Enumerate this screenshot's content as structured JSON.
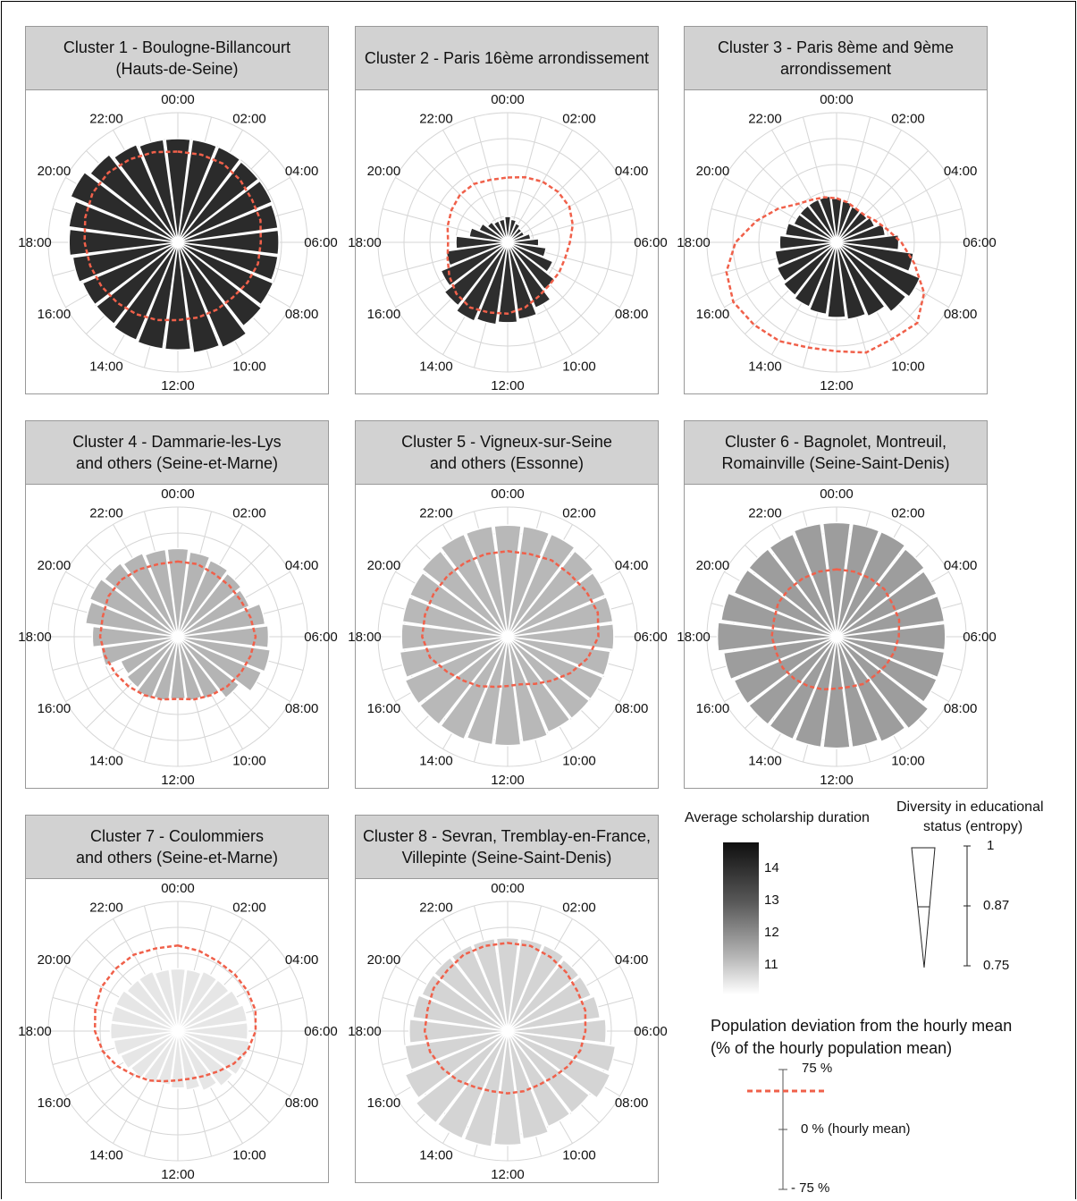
{
  "chart_data": [
    {
      "type": "polar-bar",
      "title_line1": "Cluster 1 - Boulogne-Billancourt",
      "title_line2": "(Hauts-de-Seine)",
      "hour_labels": [
        "00:00",
        "02:00",
        "04:00",
        "06:00",
        "08:00",
        "10:00",
        "12:00",
        "14:00",
        "16:00",
        "18:00",
        "20:00",
        "22:00"
      ],
      "bar_radius": [
        0.8,
        0.8,
        0.8,
        0.79,
        0.79,
        0.78,
        0.78,
        0.78,
        0.8,
        0.82,
        0.88,
        0.86,
        0.83,
        0.83,
        0.82,
        0.8,
        0.8,
        0.82,
        0.84,
        0.85,
        0.9,
        0.86,
        0.82,
        0.8
      ],
      "bar_color": "#2b2b2b",
      "deviation_line": [
        0.7,
        0.7,
        0.7,
        0.68,
        0.66,
        0.66,
        0.64,
        0.64,
        0.62,
        0.6,
        0.6,
        0.6,
        0.6,
        0.62,
        0.64,
        0.66,
        0.68,
        0.7,
        0.72,
        0.74,
        0.76,
        0.76,
        0.74,
        0.72
      ]
    },
    {
      "type": "polar-bar",
      "title_line1": "Cluster 2 - Paris 16ème arrondissement",
      "title_line2": "",
      "hour_labels": [
        "00:00",
        "02:00",
        "04:00",
        "06:00",
        "08:00",
        "10:00",
        "12:00",
        "14:00",
        "16:00",
        "18:00",
        "20:00",
        "22:00"
      ],
      "bar_radius": [
        0.2,
        0.18,
        0.16,
        0.14,
        0.14,
        0.18,
        0.24,
        0.3,
        0.38,
        0.46,
        0.55,
        0.6,
        0.62,
        0.64,
        0.66,
        0.62,
        0.56,
        0.48,
        0.4,
        0.3,
        0.24,
        0.2,
        0.18,
        0.18
      ],
      "bar_color": "#2e2e2e",
      "deviation_line": [
        0.5,
        0.52,
        0.54,
        0.55,
        0.55,
        0.52,
        0.48,
        0.46,
        0.46,
        0.46,
        0.48,
        0.52,
        0.55,
        0.56,
        0.58,
        0.56,
        0.52,
        0.48,
        0.46,
        0.48,
        0.5,
        0.52,
        0.52,
        0.5
      ]
    },
    {
      "type": "polar-bar",
      "title_line1": "Cluster 3 - Paris 8ème and 9ème",
      "title_line2": "arrondissement",
      "hour_labels": [
        "00:00",
        "02:00",
        "04:00",
        "06:00",
        "08:00",
        "10:00",
        "12:00",
        "14:00",
        "16:00",
        "18:00",
        "20:00",
        "22:00"
      ],
      "bar_radius": [
        0.34,
        0.32,
        0.3,
        0.3,
        0.32,
        0.38,
        0.48,
        0.6,
        0.7,
        0.68,
        0.62,
        0.6,
        0.58,
        0.56,
        0.54,
        0.52,
        0.5,
        0.48,
        0.44,
        0.4,
        0.36,
        0.36,
        0.36,
        0.36
      ],
      "bar_color": "#2b2b2b",
      "deviation_line": [
        0.34,
        0.32,
        0.3,
        0.3,
        0.34,
        0.4,
        0.5,
        0.62,
        0.78,
        0.88,
        0.86,
        0.88,
        0.84,
        0.84,
        0.88,
        0.9,
        0.92,
        0.88,
        0.78,
        0.64,
        0.52,
        0.42,
        0.38,
        0.36
      ]
    },
    {
      "type": "polar-bar",
      "title_line1": "Cluster 4 - Dammarie-les-Lys",
      "title_line2": "and others (Seine-et-Marne)",
      "hour_labels": [
        "00:00",
        "02:00",
        "04:00",
        "06:00",
        "08:00",
        "10:00",
        "12:00",
        "14:00",
        "16:00",
        "18:00",
        "20:00",
        "22:00"
      ],
      "bar_radius": [
        0.68,
        0.66,
        0.64,
        0.62,
        0.6,
        0.68,
        0.7,
        0.72,
        0.7,
        0.6,
        0.52,
        0.5,
        0.48,
        0.5,
        0.52,
        0.5,
        0.48,
        0.6,
        0.66,
        0.72,
        0.74,
        0.72,
        0.7,
        0.68
      ],
      "bar_color": "#b4b4b4",
      "deviation_line": [
        0.58,
        0.58,
        0.56,
        0.56,
        0.56,
        0.58,
        0.6,
        0.58,
        0.56,
        0.54,
        0.52,
        0.5,
        0.48,
        0.5,
        0.52,
        0.54,
        0.56,
        0.58,
        0.6,
        0.6,
        0.62,
        0.62,
        0.6,
        0.58
      ]
    },
    {
      "type": "polar-bar",
      "title_line1": "Cluster 5 - Vigneux-sur-Seine",
      "title_line2": "and others (Essonne)",
      "hour_labels": [
        "00:00",
        "02:00",
        "04:00",
        "06:00",
        "08:00",
        "10:00",
        "12:00",
        "14:00",
        "16:00",
        "18:00",
        "20:00",
        "22:00"
      ],
      "bar_radius": [
        0.86,
        0.86,
        0.86,
        0.84,
        0.82,
        0.82,
        0.82,
        0.8,
        0.8,
        0.8,
        0.8,
        0.82,
        0.84,
        0.84,
        0.86,
        0.86,
        0.86,
        0.84,
        0.82,
        0.82,
        0.82,
        0.84,
        0.86,
        0.86
      ],
      "bar_color": "#b8b8b8",
      "deviation_line": [
        0.66,
        0.66,
        0.68,
        0.68,
        0.7,
        0.72,
        0.7,
        0.64,
        0.56,
        0.48,
        0.42,
        0.38,
        0.38,
        0.4,
        0.44,
        0.48,
        0.54,
        0.62,
        0.66,
        0.66,
        0.66,
        0.66,
        0.66,
        0.66
      ]
    },
    {
      "type": "polar-bar",
      "title_line1": "Cluster 6 - Bagnolet, Montreuil,",
      "title_line2": "Romainville (Seine-Saint-Denis)",
      "hour_labels": [
        "00:00",
        "02:00",
        "04:00",
        "06:00",
        "08:00",
        "10:00",
        "12:00",
        "14:00",
        "16:00",
        "18:00",
        "20:00",
        "22:00"
      ],
      "bar_radius": [
        0.88,
        0.88,
        0.88,
        0.86,
        0.84,
        0.84,
        0.84,
        0.84,
        0.84,
        0.9,
        0.88,
        0.86,
        0.86,
        0.86,
        0.86,
        0.86,
        0.86,
        0.88,
        0.92,
        0.9,
        0.86,
        0.86,
        0.86,
        0.88
      ],
      "bar_color": "#9d9d9d",
      "deviation_line": [
        0.52,
        0.52,
        0.52,
        0.52,
        0.5,
        0.5,
        0.48,
        0.46,
        0.44,
        0.42,
        0.42,
        0.4,
        0.4,
        0.42,
        0.44,
        0.46,
        0.48,
        0.48,
        0.5,
        0.5,
        0.52,
        0.52,
        0.52,
        0.52
      ]
    },
    {
      "type": "polar-bar",
      "title_line1": "Cluster 7 - Coulommiers",
      "title_line2": "and others (Seine-et-Marne)",
      "hour_labels": [
        "00:00",
        "02:00",
        "04:00",
        "06:00",
        "08:00",
        "10:00",
        "12:00",
        "14:00",
        "16:00",
        "18:00",
        "20:00",
        "22:00"
      ],
      "bar_radius": [
        0.48,
        0.48,
        0.5,
        0.5,
        0.52,
        0.54,
        0.54,
        0.56,
        0.56,
        0.54,
        0.5,
        0.46,
        0.44,
        0.42,
        0.44,
        0.46,
        0.48,
        0.5,
        0.52,
        0.52,
        0.52,
        0.5,
        0.5,
        0.48
      ],
      "bar_color": "#e6e6e6",
      "deviation_line": [
        0.66,
        0.64,
        0.62,
        0.62,
        0.62,
        0.62,
        0.6,
        0.56,
        0.5,
        0.44,
        0.4,
        0.38,
        0.38,
        0.4,
        0.44,
        0.48,
        0.54,
        0.6,
        0.64,
        0.66,
        0.68,
        0.68,
        0.68,
        0.66
      ]
    },
    {
      "type": "polar-bar",
      "title_line1": "Cluster 8 - Sevran, Tremblay-en-France,",
      "title_line2": "Villepinte (Seine-Saint-Denis)",
      "hour_labels": [
        "00:00",
        "02:00",
        "04:00",
        "06:00",
        "08:00",
        "10:00",
        "12:00",
        "14:00",
        "16:00",
        "18:00",
        "20:00",
        "22:00"
      ],
      "bar_radius": [
        0.72,
        0.72,
        0.72,
        0.7,
        0.7,
        0.72,
        0.76,
        0.84,
        0.86,
        0.8,
        0.8,
        0.84,
        0.88,
        0.9,
        0.9,
        0.9,
        0.86,
        0.8,
        0.76,
        0.74,
        0.72,
        0.72,
        0.72,
        0.72
      ],
      "bar_color": "#d4d4d4",
      "deviation_line": [
        0.68,
        0.68,
        0.66,
        0.64,
        0.62,
        0.62,
        0.6,
        0.58,
        0.54,
        0.5,
        0.48,
        0.48,
        0.48,
        0.48,
        0.5,
        0.54,
        0.58,
        0.62,
        0.64,
        0.64,
        0.66,
        0.66,
        0.68,
        0.68
      ]
    }
  ],
  "legend": {
    "scholarship_title": "Average scholarship duration",
    "scholarship_ticks": [
      "14",
      "13",
      "12",
      "11"
    ],
    "entropy_title_line1": "Diversity in educational",
    "entropy_title_line2": "status (entropy)",
    "entropy_ticks": [
      "1",
      "0.87",
      "0.75"
    ],
    "deviation_title_line1": "Population deviation from the hourly mean",
    "deviation_title_line2": "(% of the hourly population mean)",
    "deviation_ticks": [
      "75 %",
      "0 % (hourly mean)",
      "- 75 %"
    ],
    "deviation_color": "#f0604a"
  }
}
